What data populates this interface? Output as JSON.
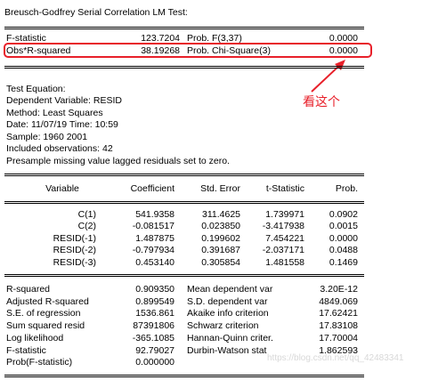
{
  "test_title": "Breusch-Godfrey Serial Correlation LM Test:",
  "summary_rows": [
    {
      "label": "F-statistic",
      "value": "123.7204",
      "prob_label": "Prob. F(3,37)",
      "prob": "0.0000"
    },
    {
      "label": "Obs*R-squared",
      "value": "38.19268",
      "prob_label": "Prob. Chi-Square(3)",
      "prob": "0.0000"
    }
  ],
  "annotation": "看这个",
  "equation_info": [
    "Test Equation:",
    "Dependent Variable: RESID",
    "Method: Least Squares",
    "Date: 11/07/19   Time: 10:59",
    "Sample: 1960 2001",
    "Included observations: 42",
    "Presample missing value lagged residuals set to zero."
  ],
  "coef_headers": [
    "Variable",
    "Coefficient",
    "Std. Error",
    "t-Statistic",
    "Prob."
  ],
  "coef_rows": [
    [
      "C(1)",
      "541.9358",
      "311.4625",
      "1.739971",
      "0.0902"
    ],
    [
      "C(2)",
      "-0.081517",
      "0.023850",
      "-3.417938",
      "0.0015"
    ],
    [
      "RESID(-1)",
      "1.487875",
      "0.199602",
      "7.454221",
      "0.0000"
    ],
    [
      "RESID(-2)",
      "-0.797934",
      "0.391687",
      "-2.037171",
      "0.0488"
    ],
    [
      "RESID(-3)",
      "0.453140",
      "0.305854",
      "1.481558",
      "0.1469"
    ]
  ],
  "stats_rows": [
    [
      "R-squared",
      "0.909350",
      "Mean dependent var",
      "3.20E-12"
    ],
    [
      "Adjusted R-squared",
      "0.899549",
      "S.D. dependent var",
      "4849.069"
    ],
    [
      "S.E. of regression",
      "1536.861",
      "Akaike info criterion",
      "17.62421"
    ],
    [
      "Sum squared resid",
      "87391806",
      "Schwarz criterion",
      "17.83108"
    ],
    [
      "Log likelihood",
      "-365.1085",
      "Hannan-Quinn criter.",
      "17.70004"
    ],
    [
      "F-statistic",
      "92.79027",
      "Durbin-Watson stat",
      "1.862593"
    ],
    [
      "Prob(F-statistic)",
      "0.000000",
      "",
      ""
    ]
  ],
  "watermark": "https://blog.csdn.net/qq_42483341",
  "colors": {
    "annotation": "#e8202a"
  }
}
